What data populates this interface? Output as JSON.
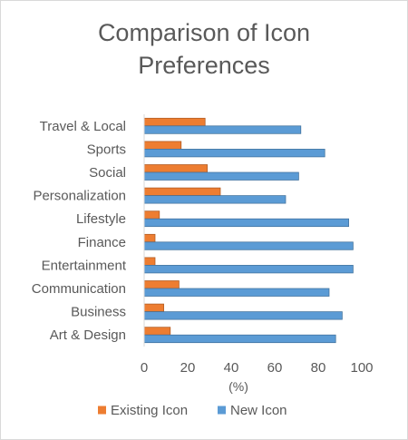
{
  "chart_data": {
    "type": "bar",
    "orientation": "horizontal",
    "title": "Comparison of Icon Preferences",
    "title_lines": [
      "Comparison of Icon",
      "Preferences"
    ],
    "categories": [
      "Art & Design",
      "Business",
      "Communication",
      "Entertainment",
      "Finance",
      "Lifestyle",
      "Personalization",
      "Social",
      "Sports",
      "Travel & Local"
    ],
    "series": [
      {
        "name": "Existing Icon",
        "color": "#ed7d31",
        "values": [
          12,
          9,
          16,
          5,
          5,
          7,
          35,
          29,
          17,
          28
        ]
      },
      {
        "name": "New Icon",
        "color": "#5b9bd5",
        "values": [
          88,
          91,
          85,
          96,
          96,
          94,
          65,
          71,
          83,
          72
        ]
      }
    ],
    "xlabel": "(%)",
    "ylabel": "",
    "xlim": [
      0,
      100
    ],
    "xticks": [
      0,
      20,
      40,
      60,
      80,
      100
    ],
    "grid": false,
    "legend_position": "bottom"
  }
}
